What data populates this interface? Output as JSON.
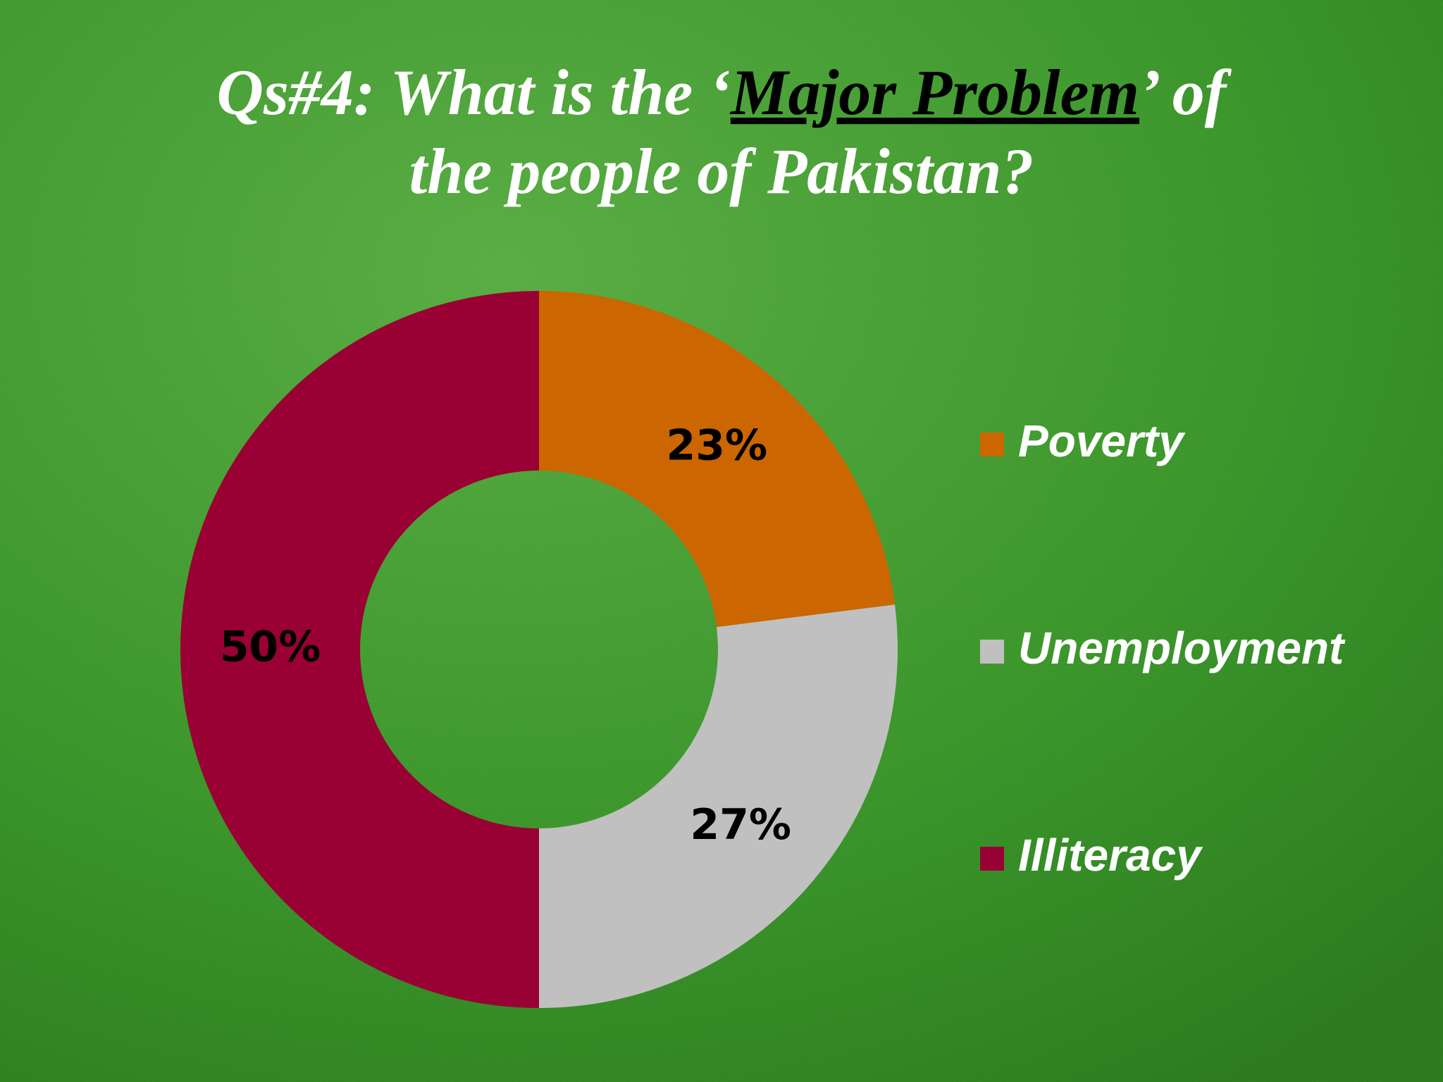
{
  "chart_data": {
    "type": "donut",
    "title_segments": [
      "Qs#4: What is the ‘",
      "Major Problem",
      "’ of",
      "the people of Pakistan?"
    ],
    "categories": [
      "Poverty",
      "Unemployment",
      "Illiteracy"
    ],
    "values": [
      23,
      27,
      50
    ],
    "value_labels": [
      "23%",
      "27%",
      "50%"
    ],
    "colors": [
      "#cc6600",
      "#c0c0c0",
      "#990033"
    ],
    "legend": "right"
  }
}
